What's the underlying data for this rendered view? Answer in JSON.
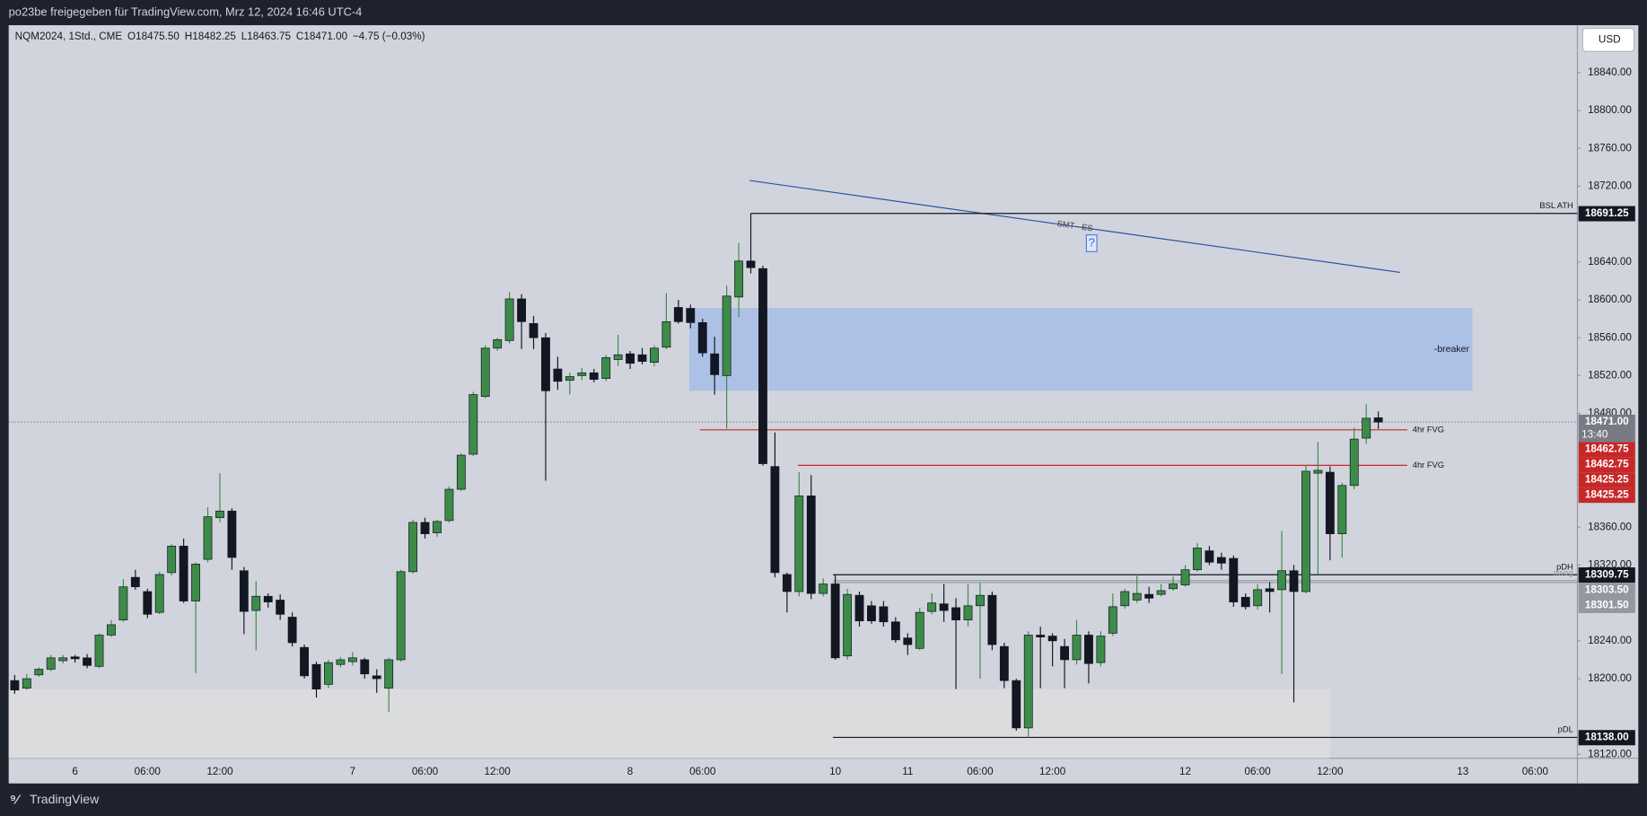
{
  "share_note": "po23be freigegeben für TradingView.com, Mrz 12, 2024 16:46 UTC-4",
  "brand": "TradingView",
  "currency": "USD",
  "chart_data": {
    "type": "candlestick",
    "legend": [
      "NQM2024, 1Std., CME",
      "O18475.50",
      "H18482.25",
      "L18463.75",
      "C18471.00",
      "−4.75 (−0.03%)"
    ],
    "categories": [
      null,
      null,
      null,
      null,
      null,
      "6",
      null,
      null,
      null,
      null,
      null,
      "06:00",
      null,
      null,
      null,
      null,
      null,
      "12:00",
      null,
      null,
      null,
      null,
      null,
      null,
      null,
      null,
      null,
      null,
      "7",
      null,
      null,
      null,
      null,
      null,
      "06:00",
      null,
      null,
      null,
      null,
      null,
      "12:00",
      null,
      null,
      null,
      null,
      null,
      null,
      null,
      null,
      null,
      null,
      "8",
      null,
      null,
      null,
      null,
      null,
      "06:00",
      null,
      null,
      null,
      null,
      null,
      null,
      null,
      null,
      null,
      null,
      "10",
      null,
      null,
      null,
      null,
      null,
      "11",
      null,
      null,
      null,
      null,
      null,
      "06:00",
      null,
      null,
      null,
      null,
      null,
      "12:00",
      null,
      null,
      null,
      null,
      null,
      null,
      null,
      null,
      null,
      null,
      "12",
      null,
      null,
      null,
      null,
      null,
      "06:00",
      null,
      null,
      null,
      null,
      null,
      "12:00",
      null,
      null,
      null,
      null,
      null,
      null,
      null,
      null,
      null,
      null,
      "13",
      null,
      null,
      null,
      null,
      null,
      "06:00",
      null,
      null,
      null
    ],
    "open": [
      18198,
      18190,
      18204,
      18210,
      18219,
      18223,
      18222,
      18213,
      18246,
      18262,
      18307,
      18292,
      18270,
      18312,
      18340,
      18282,
      18326,
      18370,
      18377,
      18314,
      18272,
      18287,
      18283,
      18265,
      18233,
      18215,
      18194,
      18215,
      18218,
      18220,
      18203,
      18190,
      18220,
      18313,
      18365,
      18354,
      18367,
      18400,
      18437,
      18498,
      18549,
      18557,
      18601,
      18575,
      18560,
      18527,
      18515,
      18520,
      18523,
      18517,
      18537,
      18543,
      18542,
      18534,
      18550,
      18592,
      18591,
      18576,
      18543,
      18520,
      18603,
      18641,
      18633,
      18424,
      18310,
      18292,
      18393,
      18290,
      18300,
      18224,
      18288,
      18277,
      18276,
      18260,
      18243,
      18232,
      18271,
      18279,
      18275,
      18262,
      18277,
      18288,
      18234,
      18198,
      18148,
      18246,
      18245,
      18234,
      18220,
      18246,
      18217,
      18248,
      18277,
      18283,
      18289,
      18289,
      18295,
      18299,
      18315,
      18335,
      18328,
      18327,
      18286,
      18277,
      18295,
      18294,
      18314,
      18292,
      18417,
      18418,
      18353,
      18404,
      18454,
      18475.5,
      null,
      null,
      null,
      null,
      null,
      null,
      null,
      null,
      null,
      null,
      null,
      null,
      null,
      null,
      null,
      null
    ],
    "high": [
      18204,
      18205,
      18212,
      18225,
      18225,
      18225,
      18226,
      18248,
      18262,
      18305,
      18315,
      18295,
      18313,
      18342,
      18348,
      18323,
      18381,
      18417,
      18380,
      18318,
      18303,
      18290,
      18289,
      18270,
      18236,
      18218,
      18220,
      18223,
      18228,
      18222,
      18210,
      18222,
      18315,
      18368,
      18370,
      18368,
      18403,
      18438,
      18503,
      18552,
      18560,
      18608,
      18606,
      18583,
      18565,
      18540,
      18523,
      18528,
      18527,
      18542,
      18563,
      18546,
      18549,
      18552,
      18607,
      18600,
      18595,
      18580,
      18561,
      18615,
      18660,
      18691.25,
      18636,
      18460,
      18312,
      18418,
      18415,
      18306,
      18310,
      18295,
      18292,
      18282,
      18282,
      18265,
      18248,
      18275,
      18290,
      18300,
      18285,
      18300,
      18301,
      18292,
      18238,
      18200,
      18250,
      18255,
      18248,
      18242,
      18262,
      18250,
      18250,
      18290,
      18295,
      18310,
      18297,
      18300,
      18308,
      18320,
      18343,
      18340,
      18333,
      18330,
      18290,
      18300,
      18302,
      18356,
      18320,
      18425,
      18450,
      18424,
      18407,
      18465,
      18490,
      18482.25,
      null,
      null,
      null,
      null,
      null,
      null,
      null,
      null,
      null,
      null,
      null,
      null,
      null,
      null,
      null,
      null
    ],
    "low": [
      18184,
      18188,
      18202,
      18208,
      18216,
      18217,
      18211,
      18211,
      18244,
      18260,
      18294,
      18264,
      18268,
      18309,
      18280,
      18206,
      18323,
      18365,
      18315,
      18247,
      18230,
      18275,
      18262,
      18234,
      18200,
      18180,
      18190,
      18212,
      18214,
      18200,
      18185,
      18165,
      18218,
      18311,
      18348,
      18350,
      18365,
      18398,
      18435,
      18496,
      18546,
      18554,
      18548,
      18548,
      18409,
      18505,
      18500,
      18515,
      18513,
      18514,
      18530,
      18527,
      18532,
      18530,
      18548,
      18575,
      18570,
      18540,
      18500,
      18464,
      18582,
      18628,
      18425,
      18307,
      18270,
      18287,
      18284,
      18287,
      18220,
      18220,
      18255,
      18258,
      18255,
      18238,
      18225,
      18230,
      18268,
      18260,
      18189,
      18255,
      18200,
      18230,
      18190,
      18145,
      18138,
      18190,
      18213,
      18190,
      18215,
      18195,
      18213,
      18245,
      18274,
      18280,
      18280,
      18287,
      18293,
      18297,
      18313,
      18320,
      18315,
      18276,
      18273,
      18273,
      18270,
      18205,
      18175,
      18290,
      18310,
      18325,
      18328,
      18400,
      18448,
      18463.75,
      null,
      null,
      null,
      null,
      null,
      null,
      null,
      null,
      null,
      null,
      null,
      null,
      null,
      null,
      null,
      null
    ],
    "close": [
      18188,
      18200,
      18210,
      18222,
      18222,
      18221,
      18214,
      18246,
      18257,
      18297,
      18297,
      18268,
      18310,
      18340,
      18282,
      18321,
      18371,
      18377,
      18328,
      18271,
      18287,
      18281,
      18268,
      18238,
      18203,
      18189,
      18217,
      18220,
      18222,
      18205,
      18200,
      18220,
      18313,
      18365,
      18353,
      18366,
      18400,
      18436,
      18500,
      18549,
      18558,
      18601,
      18577,
      18560,
      18504,
      18514,
      18519,
      18523,
      18516,
      18539,
      18542,
      18533,
      18535,
      18549,
      18577,
      18577,
      18576,
      18544,
      18521,
      18604,
      18641,
      18634,
      18427,
      18312,
      18292,
      18393,
      18290,
      18300,
      18222,
      18289,
      18261,
      18261,
      18260,
      18241,
      18236,
      18270,
      18280,
      18272,
      18262,
      18277,
      18288,
      18236,
      18198,
      18148,
      18246,
      18244,
      18240,
      18220,
      18246,
      18216,
      18245,
      18276,
      18292,
      18290,
      18285,
      18293,
      18300,
      18315,
      18338,
      18323,
      18322,
      18281,
      18276,
      18294,
      18292,
      18314,
      18292,
      18419,
      18420,
      18353,
      18404,
      18453,
      18475,
      18471,
      null,
      null,
      null,
      null,
      null,
      null,
      null,
      null,
      null,
      null,
      null,
      null,
      null,
      null,
      null,
      null
    ],
    "up_color": "#3d8b48",
    "down_color": "#131722",
    "ylim": [
      18116,
      18890
    ],
    "yticks": [
      {
        "value": 18120,
        "label": "18120.00"
      },
      {
        "value": 18200,
        "label": "18200.00"
      },
      {
        "value": 18240,
        "label": "18240.00"
      },
      {
        "value": 18320,
        "label": "18320.00"
      },
      {
        "value": 18360,
        "label": "18360.00"
      },
      {
        "value": 18480,
        "label": "18480.00"
      },
      {
        "value": 18520,
        "label": "18520.00"
      },
      {
        "value": 18560,
        "label": "18560.00"
      },
      {
        "value": 18600,
        "label": "18600.00"
      },
      {
        "value": 18640,
        "label": "18640.00"
      },
      {
        "value": 18720,
        "label": "18720.00"
      },
      {
        "value": 18760,
        "label": "18760.00"
      },
      {
        "value": 18800,
        "label": "18800.00"
      },
      {
        "value": 18840,
        "label": "18840.00"
      }
    ],
    "grid": false,
    "last_price": {
      "value": 18471,
      "label": "18471.00",
      "countdown": "13:40",
      "color": "#787b86"
    },
    "drawings": [
      {
        "kind": "shade",
        "top": 18189,
        "start": 0,
        "end": 109.5,
        "color": "#dcdcde"
      },
      {
        "kind": "box",
        "text": "-breaker",
        "top": 18591.5,
        "bottom": 18504,
        "start": 56.4,
        "end": 121.3,
        "color": "#adc0e6"
      },
      {
        "kind": "trend",
        "text": "SMT - ES",
        "icon": "?",
        "start": 61.4,
        "end": 115.3,
        "values": [
          18726,
          18629
        ],
        "color": "#2f4fa3"
      },
      {
        "kind": "hline",
        "text": "BSL ATH",
        "value": 18691.25,
        "start": 61.5,
        "labels": [
          "18691.25"
        ],
        "color": "#131722"
      },
      {
        "kind": "hline",
        "text": "4hr FVG",
        "value": 18462.75,
        "start": 57.3,
        "end": 115.9,
        "labels": [
          "18462.75",
          "18462.75"
        ],
        "color": "#c62828"
      },
      {
        "kind": "hline",
        "text": "4hr FVG",
        "value": 18425.25,
        "start": 65.4,
        "end": 115.9,
        "labels": [
          "18425.25",
          "18425.25"
        ],
        "color": "#c62828"
      },
      {
        "kind": "hline",
        "text": "pDH",
        "value": 18309.75,
        "start": 68.3,
        "labels": [
          "18309.75"
        ],
        "color": "#131722"
      },
      {
        "kind": "band",
        "text": "nwog",
        "values": [
          18303.5,
          18301.5
        ],
        "start": 68.3,
        "labels": [
          "18303.50",
          "18301.50"
        ],
        "color": "#9598a1"
      },
      {
        "kind": "hline",
        "text": "pDL",
        "value": 18138,
        "start": 68.3,
        "labels": [
          "18138.00"
        ],
        "color": "#131722"
      }
    ]
  }
}
